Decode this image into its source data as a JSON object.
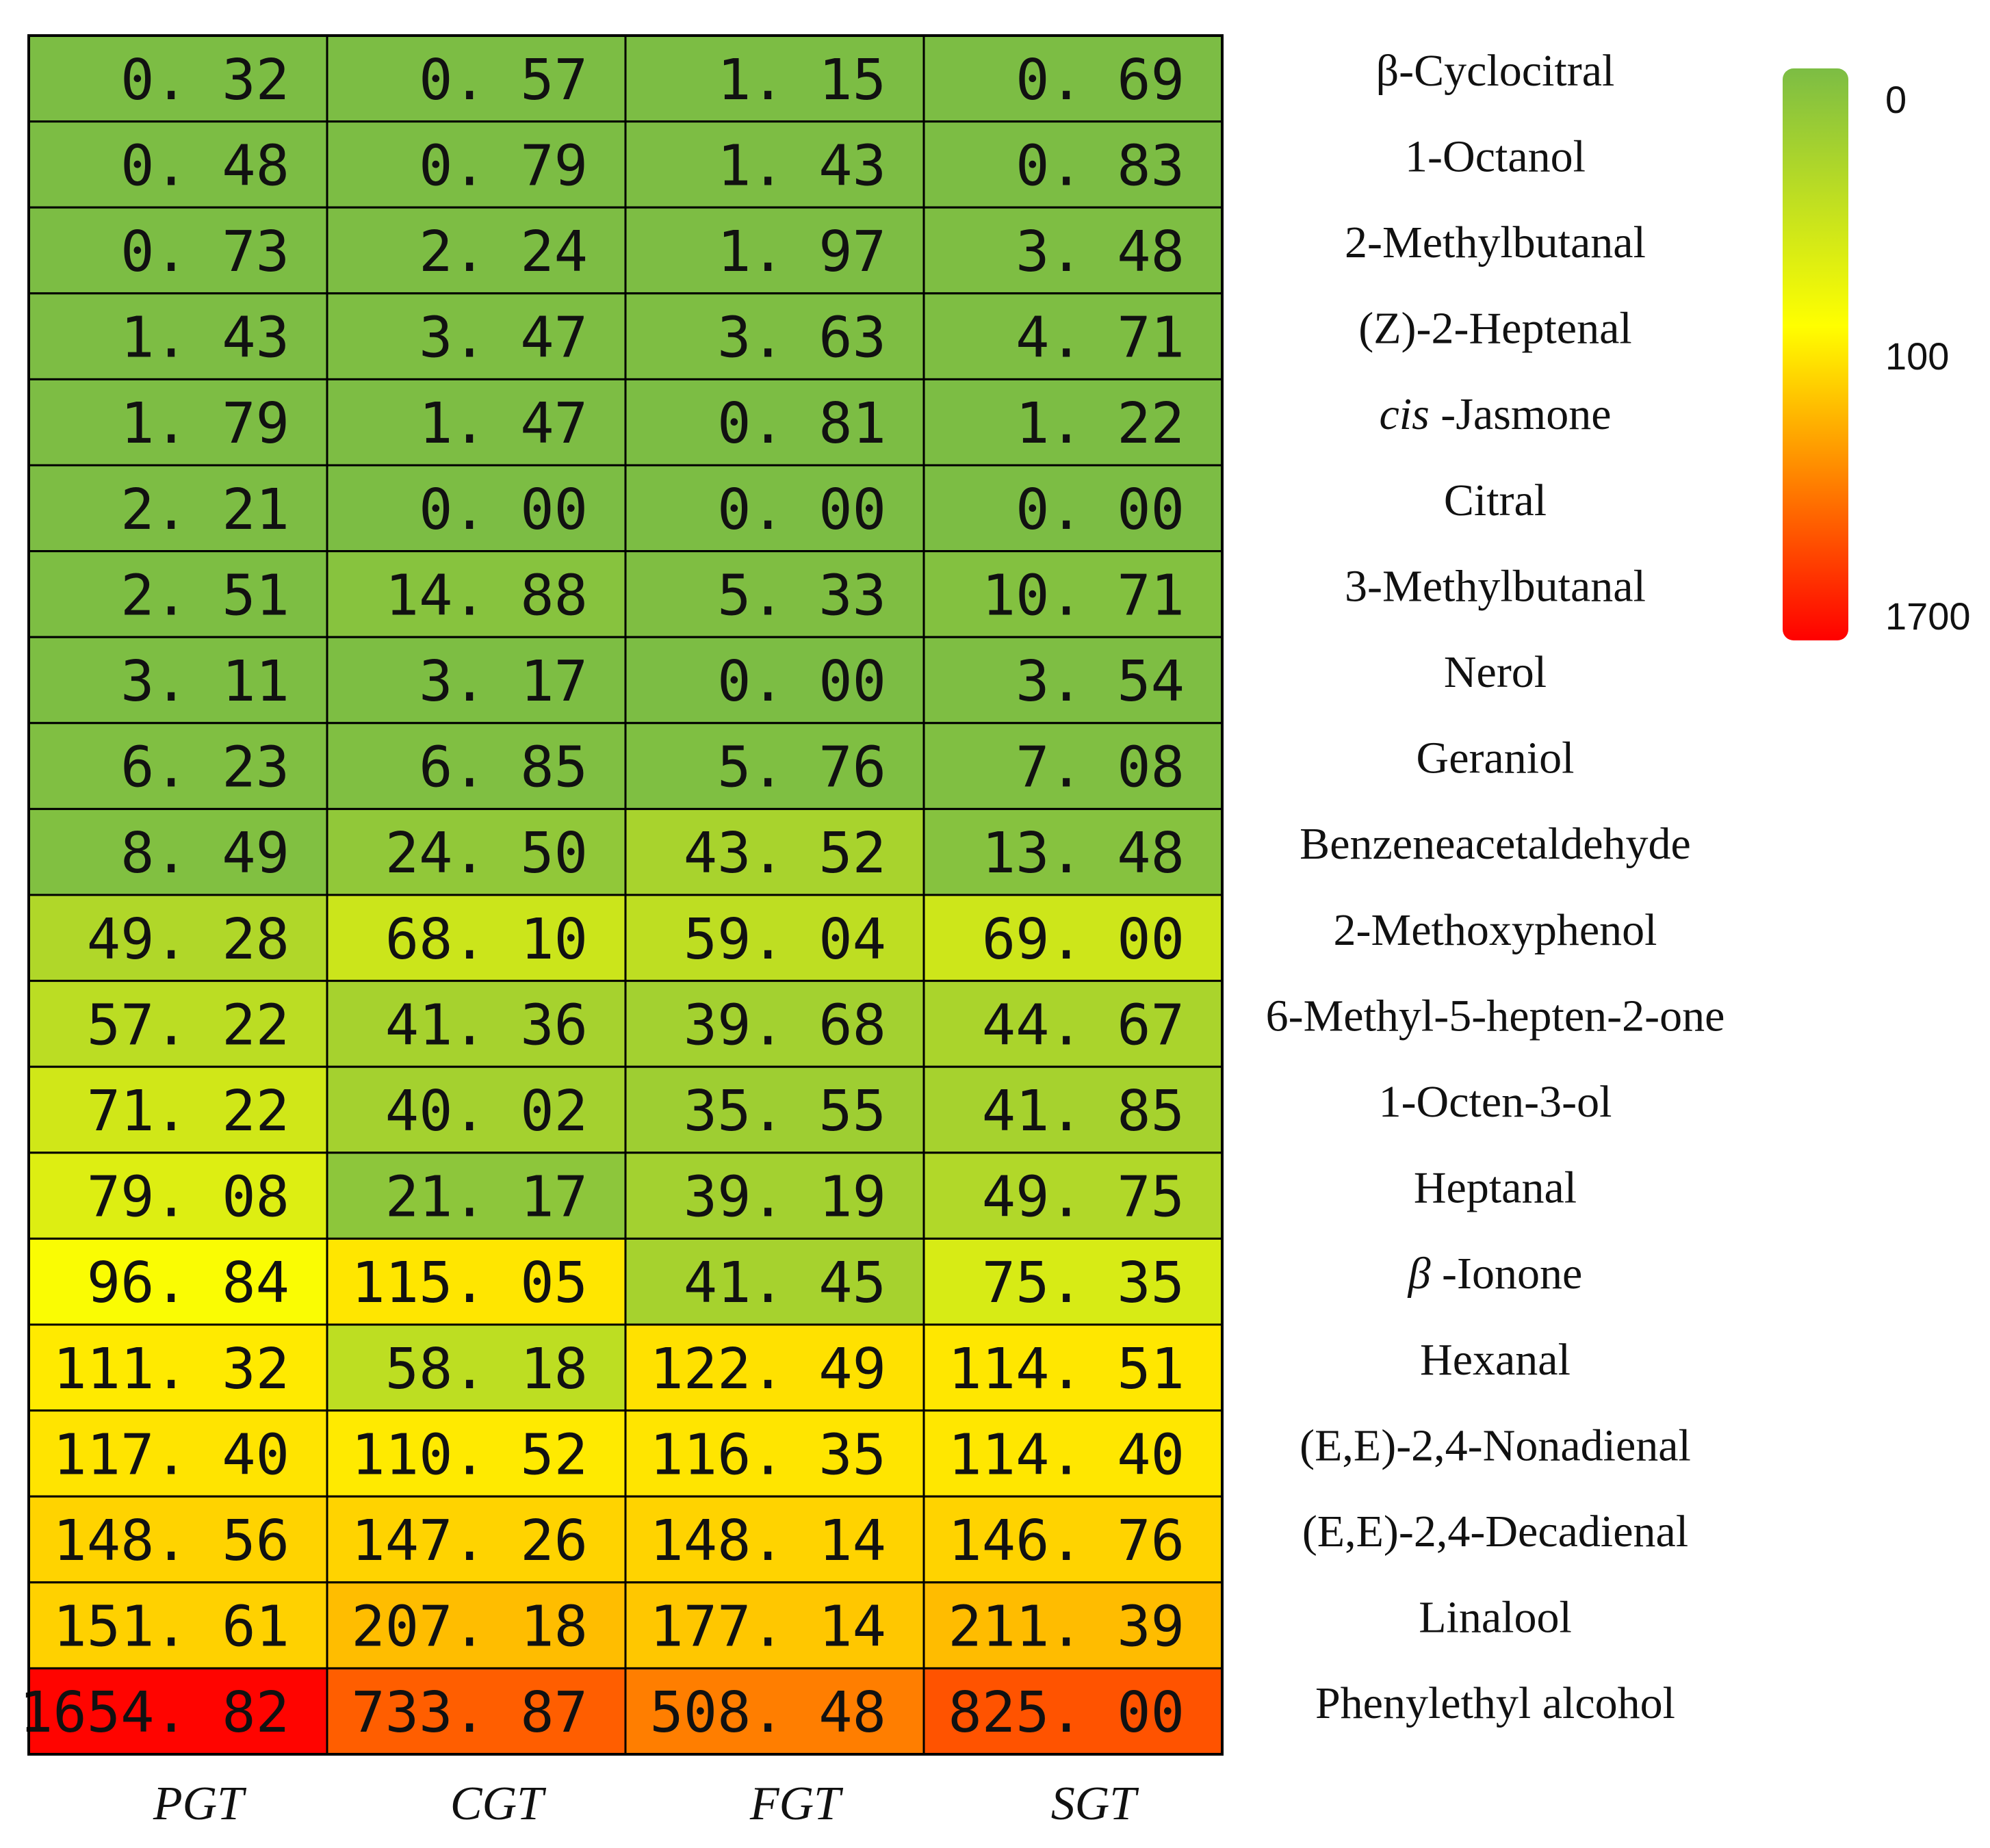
{
  "chart_data": {
    "type": "heatmap",
    "columns": [
      "PGT",
      "CGT",
      "FGT",
      "SGT"
    ],
    "rows": [
      {
        "label": "β-Cyclocitral",
        "values": [
          "0. 32",
          "0. 57",
          "1. 15",
          "0. 69"
        ]
      },
      {
        "label": "1-Octanol",
        "values": [
          "0. 48",
          "0. 79",
          "1. 43",
          "0. 83"
        ]
      },
      {
        "label": "2-Methylbutanal",
        "values": [
          "0. 73",
          "2. 24",
          "1. 97",
          "3. 48"
        ]
      },
      {
        "label": "(Z)-2-Heptenal",
        "values": [
          "1. 43",
          "3. 47",
          "3. 63",
          "4. 71"
        ]
      },
      {
        "label_italic": "cis",
        "label": " -Jasmone",
        "values": [
          "1. 79",
          "1. 47",
          "0. 81",
          "1. 22"
        ]
      },
      {
        "label": "Citral",
        "values": [
          "2. 21",
          "0. 00",
          "0. 00",
          "0. 00"
        ]
      },
      {
        "label": "3-Methylbutanal",
        "values": [
          "2. 51",
          "14. 88",
          "5. 33",
          "10. 71"
        ]
      },
      {
        "label": "Nerol",
        "values": [
          "3. 11",
          "3. 17",
          "0. 00",
          "3. 54"
        ]
      },
      {
        "label": "Geraniol",
        "values": [
          "6. 23",
          "6. 85",
          "5. 76",
          "7. 08"
        ]
      },
      {
        "label": "Benzeneacetaldehyde",
        "values": [
          "8. 49",
          "24. 50",
          "43. 52",
          "13. 48"
        ]
      },
      {
        "label": "2-Methoxyphenol",
        "values": [
          "49. 28",
          "68. 10",
          "59. 04",
          "69. 00"
        ]
      },
      {
        "label": "6-Methyl-5-hepten-2-one",
        "values": [
          "57. 22",
          "41. 36",
          "39. 68",
          "44. 67"
        ]
      },
      {
        "label": "1-Octen-3-ol",
        "values": [
          "71. 22",
          "40. 02",
          "35. 55",
          "41. 85"
        ]
      },
      {
        "label": "Heptanal",
        "values": [
          "79. 08",
          "21. 17",
          "39. 19",
          "49. 75"
        ]
      },
      {
        "label_italic": "β",
        "label": " -Ionone",
        "values": [
          "96. 84",
          "115. 05",
          "41. 45",
          "75. 35"
        ]
      },
      {
        "label": "Hexanal",
        "values": [
          "111. 32",
          "58. 18",
          "122. 49",
          "114. 51"
        ]
      },
      {
        "label": "(E,E)-2,4-Nonadienal",
        "values": [
          "117. 40",
          "110. 52",
          "116. 35",
          "114. 40"
        ]
      },
      {
        "label": "(E,E)-2,4-Decadienal",
        "values": [
          "148. 56",
          "147. 26",
          "148. 14",
          "146. 76"
        ]
      },
      {
        "label": "Linalool",
        "values": [
          "151. 61",
          "207. 18",
          "177. 14",
          "211. 39"
        ]
      },
      {
        "label": "Phenylethyl alcohol",
        "values": [
          "1654. 82",
          "733. 87",
          "508. 48",
          "825. 00"
        ]
      }
    ],
    "color_scale": {
      "ticks": [
        "0",
        "100",
        "1700"
      ],
      "tick_values": [
        0,
        100,
        1700
      ],
      "colors": [
        "#7cbd44",
        "#ffff00",
        "#ff0000"
      ]
    }
  }
}
